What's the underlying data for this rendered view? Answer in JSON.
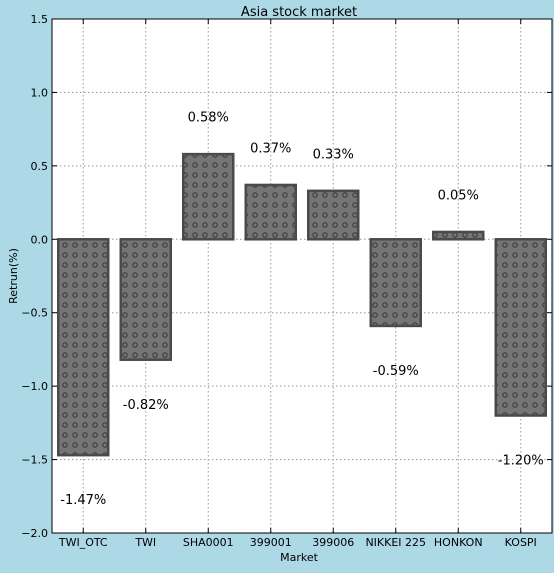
{
  "chart_data": {
    "type": "bar",
    "title": "Asia stock market",
    "xlabel": "Market",
    "ylabel": "Retrun(%)",
    "categories": [
      "TWI_OTC",
      "TWI",
      "SHA0001",
      "399001",
      "399006",
      "NIKKEI 225",
      "HONKON",
      "KOSPI"
    ],
    "values": [
      -1.47,
      -0.82,
      0.58,
      0.37,
      0.33,
      -0.59,
      0.05,
      -1.2
    ],
    "data_labels": [
      "-1.47%",
      "-0.82%",
      "0.58%",
      "0.37%",
      "0.33%",
      "-0.59%",
      "0.05%",
      "-1.20%"
    ],
    "ylim": [
      -2.0,
      1.5
    ],
    "yticks": [
      -2.0,
      -1.5,
      -1.0,
      -0.5,
      0.0,
      0.5,
      1.0,
      1.5
    ],
    "ytick_labels": [
      "−2.0",
      "−1.5",
      "−1.0",
      "−0.5",
      "0.0",
      "0.5",
      "1.0",
      "1.5"
    ],
    "grid": true,
    "bar_color": "#757575",
    "bar_edge_color": "#4a4a4a",
    "hatch": "small circles",
    "background_color": "#add8e6",
    "plot_background_color": "#ffffff"
  }
}
